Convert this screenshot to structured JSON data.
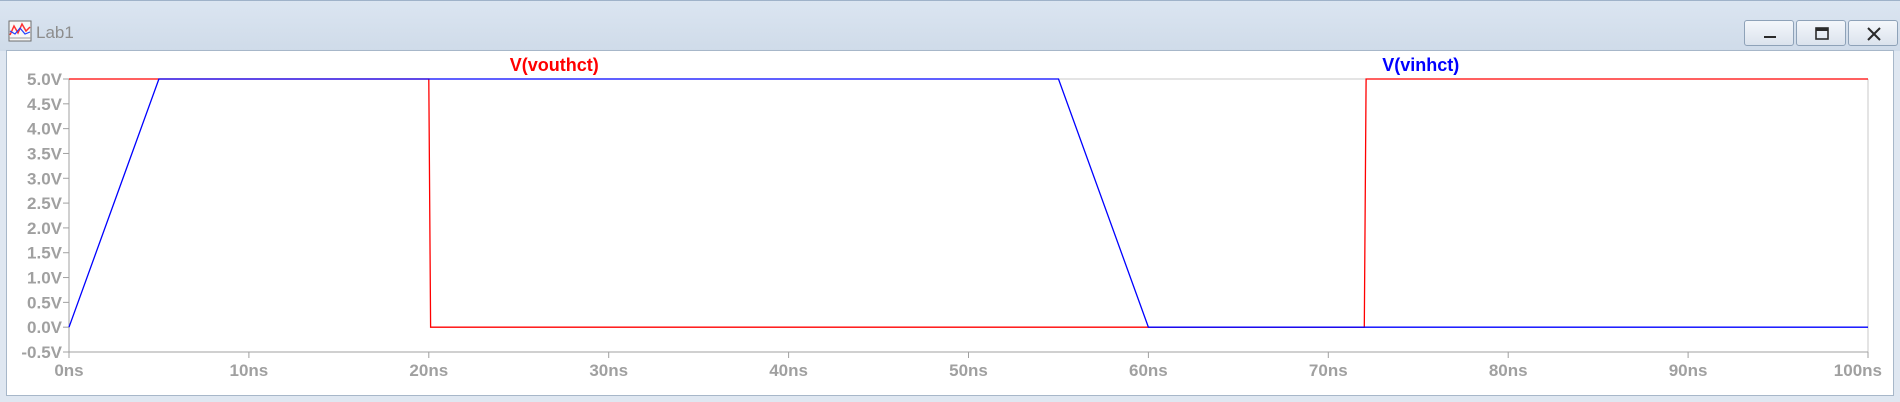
{
  "window": {
    "title": "Lab1",
    "app_icon": "waveform-viewer-icon",
    "buttons": {
      "minimize_icon": "minimize-icon",
      "restore_icon": "restore-icon",
      "close_icon": "close-icon"
    }
  },
  "colors": {
    "trace_vout": "#ff0000",
    "trace_vin": "#0000ff",
    "axis_text": "#a0a0a0",
    "grid_line": "#c8c8c8"
  },
  "chart_data": {
    "type": "line",
    "xlim": [
      0,
      100
    ],
    "ylim": [
      -0.5,
      5.0
    ],
    "x_tick_labels": [
      "0ns",
      "10ns",
      "20ns",
      "30ns",
      "40ns",
      "50ns",
      "60ns",
      "70ns",
      "80ns",
      "90ns",
      "100ns"
    ],
    "x_ticks": [
      0,
      10,
      20,
      30,
      40,
      50,
      60,
      70,
      80,
      90,
      100
    ],
    "y_tick_labels": [
      "5.0V",
      "4.5V",
      "4.0V",
      "3.5V",
      "3.0V",
      "2.5V",
      "2.0V",
      "1.5V",
      "1.0V",
      "0.5V",
      "0.0V",
      "-0.5V"
    ],
    "y_ticks": [
      5.0,
      4.5,
      4.0,
      3.5,
      3.0,
      2.5,
      2.0,
      1.5,
      1.0,
      0.5,
      0.0,
      -0.5
    ],
    "grid": false,
    "series": [
      {
        "name": "V(vouthct)",
        "color": "#ff0000",
        "x": [
          0,
          20,
          20.1,
          72,
          72.1,
          100
        ],
        "y": [
          5.0,
          5.0,
          0.0,
          0.0,
          5.0,
          5.0
        ]
      },
      {
        "name": "V(vinhct)",
        "color": "#0000ff",
        "x": [
          0,
          5,
          55,
          60,
          100
        ],
        "y": [
          0.0,
          5.0,
          5.0,
          0.0,
          0.0
        ]
      }
    ]
  }
}
